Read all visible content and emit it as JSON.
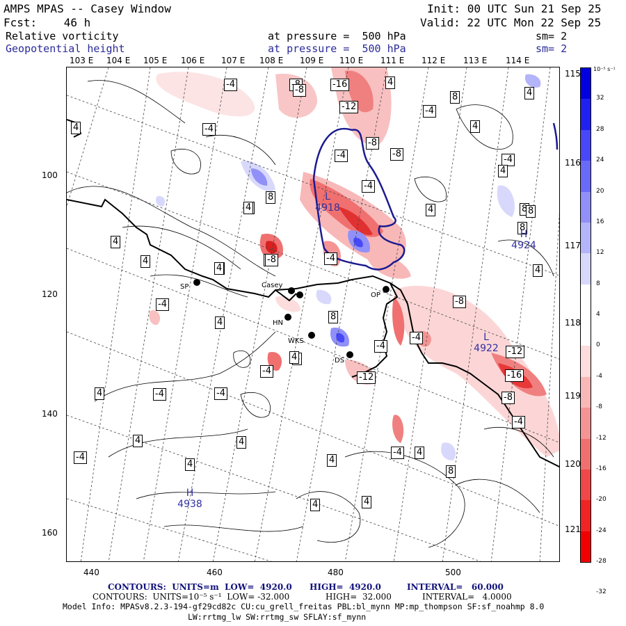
{
  "header": {
    "title": "AMPS MPAS -- Casey Window",
    "init": "Init: 00 UTC Sun 21 Sep 25",
    "fcst": "Fcst:    46 h",
    "valid": "Valid: 22 UTC Mon 22 Sep 25",
    "field1": "Relative vorticity",
    "field1_level": "at pressure =  500 hPa",
    "field1_sm": "sm= 2",
    "field2": "Geopotential height",
    "field2_level": "at pressure =  500 hPa",
    "field2_sm": "sm= 2"
  },
  "top_lon_labels": [
    "103 E",
    "104 E",
    "105 E",
    "106 E",
    "107 E",
    "108 E",
    "109 E",
    "110 E",
    "111 E",
    "112 E",
    "113 E",
    "114 E"
  ],
  "right_lon_labels": [
    "115 E",
    "116 E",
    "117 E",
    "118 E",
    "119 E",
    "120 E",
    "121 E"
  ],
  "y_ticks": [
    "100",
    "120",
    "140",
    "160"
  ],
  "x_ticks": [
    "440",
    "460",
    "480",
    "500"
  ],
  "colorbar": {
    "unit": "10⁻⁵ s⁻¹",
    "labels": [
      "32",
      "28",
      "24",
      "20",
      "16",
      "12",
      "8",
      "4",
      "0",
      "-4",
      "-8",
      "-12",
      "-16",
      "-20",
      "-24",
      "-28",
      "-32"
    ],
    "colors": [
      "#0000e0",
      "#2020f0",
      "#4848f8",
      "#6a6af8",
      "#9090f8",
      "#b4b4fa",
      "#d8d8fc",
      "#ffffff",
      "#ffffff",
      "#fcdcdc",
      "#f8b8b8",
      "#f49494",
      "#f07070",
      "#f04848",
      "#f02424",
      "#f00000"
    ]
  },
  "stations": [
    "SP",
    "Casey",
    "HN",
    "WKS",
    "DS",
    "OP"
  ],
  "highs_lows": [
    {
      "type": "H",
      "value": "4924"
    },
    {
      "type": "L",
      "value": "4922"
    },
    {
      "type": "H",
      "value": "4938"
    },
    {
      "type": "L",
      "value": "4918"
    }
  ],
  "contour_labels": [
    "-4",
    "-8",
    "-16",
    "-12",
    "-8",
    "-4",
    "-8",
    "4",
    "8",
    "4",
    "-4",
    "4",
    "8",
    "-8",
    "4",
    "8",
    "4",
    "4",
    "-4",
    "4",
    "-4",
    "-8",
    "-4",
    "4",
    "4",
    "-12",
    "-16",
    "-8",
    "-4",
    "8",
    "4",
    "4",
    "-8",
    "-4",
    "8",
    "-4",
    "-12",
    "-4",
    "4",
    "-4",
    "4",
    "4",
    "4",
    "-4",
    "-4",
    "4",
    "8",
    "4",
    "4",
    "4",
    "-4",
    "4",
    "4",
    "4",
    "4",
    "-4",
    "4",
    "-8",
    "-4",
    "8",
    "4",
    "4"
  ],
  "footer": {
    "line1a": "CONTOURS:  UNITS=m  LOW=  4920.0",
    "line1b": "HIGH=  4920.0",
    "line1c": "INTERVAL=   60.000",
    "line2a": "CONTOURS:  UNITS=10⁻⁵ s⁻¹  LOW= -32.000",
    "line2b": "HIGH=  32.000",
    "line2c": "INTERVAL=   4.0000",
    "model_info": "Model Info: MPASv8.2.3-194-gf29cd82c CU:cu_grell_freitas PBL:bl_mynn MP:mp_thompson SF:sf_noahmp 8.0",
    "model_info2": "LW:rrtmg_lw SW:rrtmg_sw SFLAY:sf_mynn"
  }
}
